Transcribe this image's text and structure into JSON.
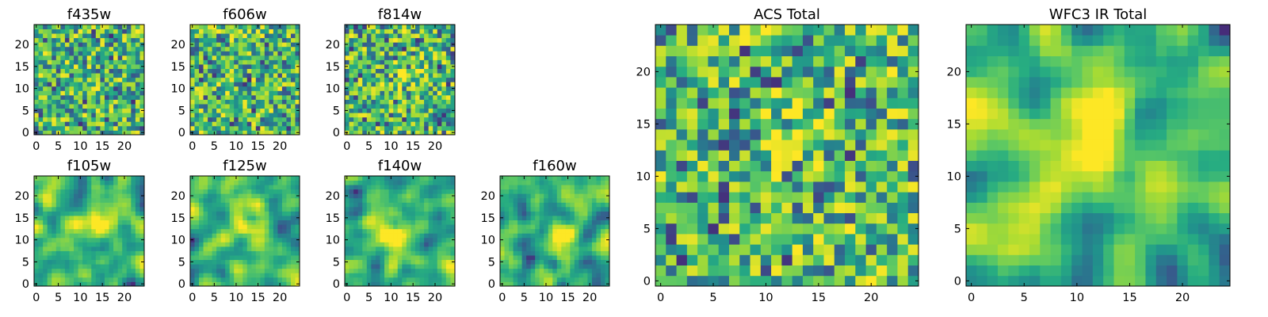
{
  "figure": {
    "colormap": "viridis",
    "colormap_stops": [
      "#440154",
      "#3b528b",
      "#21918c",
      "#5ec962",
      "#fde725"
    ]
  },
  "chart_data": [
    {
      "type": "heatmap",
      "title": "f435w",
      "grid_size": [
        25,
        25
      ],
      "xlim": [
        -0.5,
        24.5
      ],
      "ylim": [
        -0.5,
        24.5
      ],
      "xticks": [
        0,
        5,
        10,
        15,
        20
      ],
      "yticks": [
        0,
        5,
        10,
        15,
        20
      ],
      "xtick_labels": [
        "0",
        "5",
        "10",
        "15",
        "20"
      ],
      "ytick_labels": [
        "0",
        "5",
        "10",
        "15",
        "20"
      ],
      "value_range": [
        0,
        1
      ],
      "approx_mean": 0.62,
      "texture": "uncorrelated noise"
    },
    {
      "type": "heatmap",
      "title": "f606w",
      "grid_size": [
        25,
        25
      ],
      "xlim": [
        -0.5,
        24.5
      ],
      "ylim": [
        -0.5,
        24.5
      ],
      "xticks": [
        0,
        5,
        10,
        15,
        20
      ],
      "yticks": [
        0,
        5,
        10,
        15,
        20
      ],
      "xtick_labels": [
        "0",
        "5",
        "10",
        "15",
        "20"
      ],
      "ytick_labels": [
        "0",
        "5",
        "10",
        "15",
        "20"
      ],
      "value_range": [
        0,
        1
      ],
      "approx_mean": 0.64,
      "texture": "uncorrelated noise"
    },
    {
      "type": "heatmap",
      "title": "f814w",
      "grid_size": [
        25,
        25
      ],
      "xlim": [
        -0.5,
        24.5
      ],
      "ylim": [
        -0.5,
        24.5
      ],
      "xticks": [
        0,
        5,
        10,
        15,
        20
      ],
      "yticks": [
        0,
        5,
        10,
        15,
        20
      ],
      "xtick_labels": [
        "0",
        "5",
        "10",
        "15",
        "20"
      ],
      "ytick_labels": [
        "0",
        "5",
        "10",
        "15",
        "20"
      ],
      "value_range": [
        0,
        1
      ],
      "approx_mean": 0.66,
      "texture": "noise with faint central source",
      "bright_peak": [
        13,
        13
      ]
    },
    {
      "type": "heatmap",
      "title": "f105w",
      "grid_size": [
        25,
        25
      ],
      "xlim": [
        -0.5,
        24.5
      ],
      "ylim": [
        -0.5,
        24.5
      ],
      "xticks": [
        0,
        5,
        10,
        15,
        20
      ],
      "yticks": [
        0,
        5,
        10,
        15,
        20
      ],
      "xtick_labels": [
        "0",
        "5",
        "10",
        "15",
        "20"
      ],
      "ytick_labels": [
        "0",
        "5",
        "10",
        "15",
        "20"
      ],
      "value_range": [
        0,
        1
      ],
      "approx_mean": 0.6,
      "texture": "smooth blobs, bright central source",
      "bright_peak": [
        13,
        14
      ]
    },
    {
      "type": "heatmap",
      "title": "f125w",
      "grid_size": [
        25,
        25
      ],
      "xlim": [
        -0.5,
        24.5
      ],
      "ylim": [
        -0.5,
        24.5
      ],
      "xticks": [
        0,
        5,
        10,
        15,
        20
      ],
      "yticks": [
        0,
        5,
        10,
        15,
        20
      ],
      "xtick_labels": [
        "0",
        "5",
        "10",
        "15",
        "20"
      ],
      "ytick_labels": [
        "0",
        "5",
        "10",
        "15",
        "20"
      ],
      "value_range": [
        0,
        1
      ],
      "approx_mean": 0.58,
      "texture": "smooth blobs",
      "bright_peak": [
        13,
        13
      ]
    },
    {
      "type": "heatmap",
      "title": "f140w",
      "grid_size": [
        25,
        25
      ],
      "xlim": [
        -0.5,
        24.5
      ],
      "ylim": [
        -0.5,
        24.5
      ],
      "xticks": [
        0,
        5,
        10,
        15,
        20
      ],
      "yticks": [
        0,
        5,
        10,
        15,
        20
      ],
      "xtick_labels": [
        "0",
        "5",
        "10",
        "15",
        "20"
      ],
      "ytick_labels": [
        "0",
        "5",
        "10",
        "15",
        "20"
      ],
      "value_range": [
        0,
        1
      ],
      "approx_mean": 0.64,
      "texture": "smooth blobs, bright central source",
      "bright_peak": [
        10,
        11
      ]
    },
    {
      "type": "heatmap",
      "title": "f160w",
      "grid_size": [
        25,
        25
      ],
      "xlim": [
        -0.5,
        24.5
      ],
      "ylim": [
        -0.5,
        24.5
      ],
      "xticks": [
        0,
        5,
        10,
        15,
        20
      ],
      "yticks": [
        0,
        5,
        10,
        15,
        20
      ],
      "xtick_labels": [
        "0",
        "5",
        "10",
        "15",
        "20"
      ],
      "ytick_labels": [
        "0",
        "5",
        "10",
        "15",
        "20"
      ],
      "value_range": [
        0,
        1
      ],
      "approx_mean": 0.6,
      "texture": "smooth blobs",
      "bright_peak": [
        12,
        10
      ]
    },
    {
      "type": "heatmap",
      "title": "ACS Total",
      "grid_size": [
        25,
        25
      ],
      "xlim": [
        -0.5,
        24.5
      ],
      "ylim": [
        -0.5,
        24.5
      ],
      "xticks": [
        0,
        5,
        10,
        15,
        20
      ],
      "yticks": [
        0,
        5,
        10,
        15,
        20
      ],
      "xtick_labels": [
        "0",
        "5",
        "10",
        "15",
        "20"
      ],
      "ytick_labels": [
        "0",
        "5",
        "10",
        "15",
        "20"
      ],
      "value_range": [
        0,
        1
      ],
      "approx_mean": 0.64,
      "texture": "uncorrelated noise",
      "bright_peak": [
        13,
        14
      ]
    },
    {
      "type": "heatmap",
      "title": "WFC3 IR Total",
      "grid_size": [
        25,
        25
      ],
      "xlim": [
        -0.5,
        24.5
      ],
      "ylim": [
        -0.5,
        24.5
      ],
      "xticks": [
        0,
        5,
        10,
        15,
        20
      ],
      "yticks": [
        0,
        5,
        10,
        15,
        20
      ],
      "xtick_labels": [
        "0",
        "5",
        "10",
        "15",
        "20"
      ],
      "ytick_labels": [
        "0",
        "5",
        "10",
        "15",
        "20"
      ],
      "value_range": [
        0,
        1
      ],
      "approx_mean": 0.6,
      "texture": "smooth blobs, bright central source",
      "bright_peak": [
        13,
        13
      ]
    }
  ]
}
